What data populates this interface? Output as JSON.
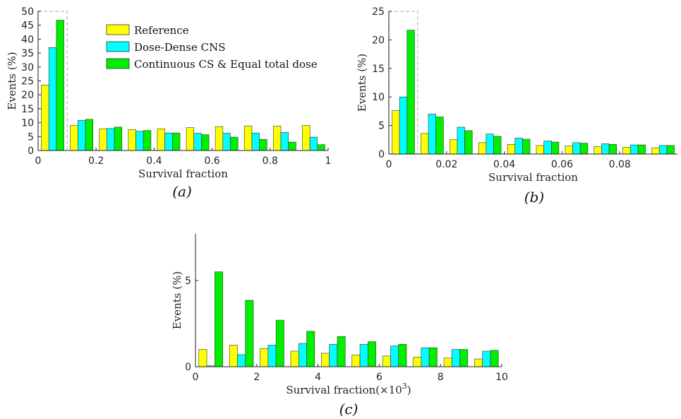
{
  "colors": {
    "reference": "#ffff00",
    "dose_dense": "#00ffff",
    "continuous": "#00ee00",
    "edge": "#333333"
  },
  "legend": [
    "Reference",
    "Dose-Dense CNS",
    "Continuous CS & Equal total dose"
  ],
  "chart_data": [
    {
      "type": "bar",
      "panel_label": "(a)",
      "xlabel": "Survival fraction",
      "ylabel": "Events (%)",
      "xlim": [
        0,
        1
      ],
      "ylim": [
        0,
        50
      ],
      "xticks": [
        0,
        0.2,
        0.4,
        0.6,
        0.8,
        1
      ],
      "xtick_labels": [
        "0",
        "0.2",
        "0.4",
        "0.6",
        "0.8",
        "1"
      ],
      "yticks": [
        0,
        5,
        10,
        15,
        20,
        25,
        30,
        35,
        40,
        45,
        50
      ],
      "ytick_labels": [
        "0",
        "5",
        "10",
        "15",
        "20",
        "25",
        "30",
        "35",
        "40",
        "45",
        "50"
      ],
      "bin_width": 0.1,
      "x": [
        0.05,
        0.15,
        0.25,
        0.35,
        0.45,
        0.55,
        0.65,
        0.75,
        0.85,
        0.95
      ],
      "highlight_region": [
        0,
        0.1
      ],
      "series": [
        {
          "name": "Reference",
          "values": [
            23.5,
            9.0,
            7.8,
            7.5,
            7.8,
            8.2,
            8.6,
            8.8,
            8.8,
            9.0
          ]
        },
        {
          "name": "Dose-Dense CNS",
          "values": [
            37.0,
            10.8,
            7.9,
            6.9,
            6.3,
            6.2,
            6.2,
            6.3,
            6.5,
            4.8
          ]
        },
        {
          "name": "Continuous CS & Equal total dose",
          "values": [
            46.8,
            11.2,
            8.4,
            7.2,
            6.3,
            5.7,
            4.8,
            4.0,
            3.0,
            2.1
          ]
        }
      ]
    },
    {
      "type": "bar",
      "panel_label": "(b)",
      "xlabel": "Survival fraction",
      "ylabel": "Events (%)",
      "xlim": [
        0,
        0.1
      ],
      "ylim": [
        0,
        25
      ],
      "xticks": [
        0,
        0.02,
        0.04,
        0.06,
        0.08
      ],
      "xtick_labels": [
        "0",
        "0.02",
        "0.04",
        "0.06",
        "0.08"
      ],
      "yticks": [
        0,
        5,
        10,
        15,
        20,
        25
      ],
      "ytick_labels": [
        "0",
        "5",
        "10",
        "15",
        "20",
        "25"
      ],
      "bin_width": 0.01,
      "x": [
        0.005,
        0.015,
        0.025,
        0.035,
        0.045,
        0.055,
        0.065,
        0.075,
        0.085,
        0.095
      ],
      "highlight_region": [
        0,
        0.01
      ],
      "series": [
        {
          "name": "Reference",
          "values": [
            7.6,
            3.6,
            2.5,
            2.0,
            1.7,
            1.5,
            1.4,
            1.3,
            1.2,
            1.1
          ]
        },
        {
          "name": "Dose-Dense CNS",
          "values": [
            10.0,
            7.0,
            4.7,
            3.5,
            2.8,
            2.3,
            2.0,
            1.8,
            1.6,
            1.5
          ]
        },
        {
          "name": "Continuous CS & Equal total dose",
          "values": [
            21.7,
            6.5,
            4.1,
            3.1,
            2.6,
            2.1,
            1.9,
            1.7,
            1.6,
            1.5
          ]
        }
      ]
    },
    {
      "type": "bar",
      "panel_label": "(c)",
      "xlabel": "Survival fraction(×10",
      "xlabel_exponent": "3",
      "xlabel_tail": ")",
      "ylabel": "Events (%)",
      "xlim": [
        0,
        10
      ],
      "ylim": [
        0,
        7.7
      ],
      "xticks": [
        0,
        2,
        4,
        6,
        8,
        10
      ],
      "xtick_labels": [
        "0",
        "2",
        "4",
        "6",
        "8",
        "10"
      ],
      "yticks": [
        0,
        5
      ],
      "ytick_labels": [
        "0",
        "5"
      ],
      "bin_width": 1,
      "x": [
        0.5,
        1.5,
        2.5,
        3.5,
        4.5,
        5.5,
        6.5,
        7.5,
        8.5,
        9.5
      ],
      "series": [
        {
          "name": "Reference",
          "values": [
            1.0,
            1.25,
            1.05,
            0.9,
            0.78,
            0.68,
            0.62,
            0.55,
            0.5,
            0.45
          ]
        },
        {
          "name": "Dose-Dense CNS",
          "values": [
            0.05,
            0.7,
            1.25,
            1.35,
            1.3,
            1.3,
            1.2,
            1.1,
            1.0,
            0.9
          ]
        },
        {
          "name": "Continuous CS & Equal total dose",
          "values": [
            5.5,
            3.85,
            2.7,
            2.05,
            1.75,
            1.45,
            1.3,
            1.1,
            1.0,
            0.95
          ]
        }
      ]
    }
  ]
}
